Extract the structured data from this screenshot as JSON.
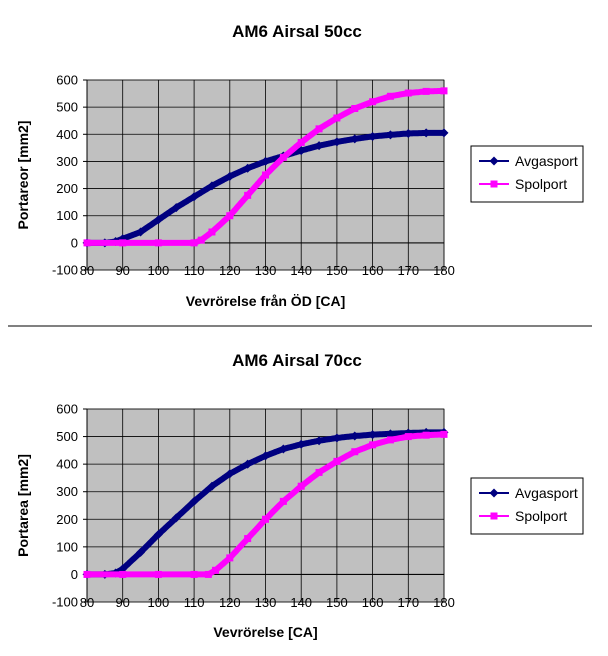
{
  "chart_data": [
    {
      "type": "line",
      "title": "AM6 Airsal 50cc",
      "xlabel": "Vevrörelse från ÖD [CA]",
      "ylabel": "Portareor [mm2]",
      "xlim": [
        80,
        180
      ],
      "ylim": [
        -100,
        600
      ],
      "xticks": [
        80,
        90,
        100,
        110,
        120,
        130,
        140,
        150,
        160,
        170,
        180
      ],
      "yticks": [
        -100,
        0,
        100,
        200,
        300,
        400,
        500,
        600
      ],
      "grid": true,
      "legend_position": "right",
      "plot_background": "#c0c0c0",
      "series": [
        {
          "name": "Avgasport",
          "color": "#000080",
          "marker": "diamond",
          "x": [
            80,
            85,
            88,
            90,
            95,
            100,
            105,
            110,
            115,
            120,
            125,
            130,
            135,
            140,
            145,
            150,
            155,
            160,
            165,
            170,
            175,
            180
          ],
          "y": [
            0,
            0,
            5,
            15,
            40,
            85,
            130,
            170,
            210,
            245,
            275,
            300,
            320,
            340,
            358,
            372,
            383,
            392,
            398,
            403,
            405,
            405
          ]
        },
        {
          "name": "Spolport",
          "color": "#ff00ff",
          "marker": "square",
          "x": [
            80,
            90,
            100,
            110,
            112,
            115,
            120,
            125,
            130,
            135,
            140,
            145,
            150,
            155,
            160,
            165,
            170,
            175,
            180
          ],
          "y": [
            0,
            0,
            0,
            0,
            10,
            40,
            100,
            175,
            250,
            315,
            370,
            420,
            460,
            495,
            520,
            540,
            552,
            558,
            560
          ]
        }
      ]
    },
    {
      "type": "line",
      "title": "AM6 Airsal 70cc",
      "xlabel": "Vevrörelse [CA]",
      "ylabel": "Portarea [mm2]",
      "xlim": [
        80,
        180
      ],
      "ylim": [
        -100,
        600
      ],
      "xticks": [
        80,
        90,
        100,
        110,
        120,
        130,
        140,
        150,
        160,
        170,
        180
      ],
      "yticks": [
        -100,
        0,
        100,
        200,
        300,
        400,
        500,
        600
      ],
      "grid": true,
      "legend_position": "right",
      "plot_background": "#c0c0c0",
      "series": [
        {
          "name": "Avgasport",
          "color": "#000080",
          "marker": "diamond",
          "x": [
            80,
            85,
            88,
            90,
            95,
            100,
            105,
            110,
            115,
            120,
            125,
            130,
            135,
            140,
            145,
            150,
            155,
            160,
            165,
            170,
            175,
            180
          ],
          "y": [
            0,
            0,
            5,
            20,
            80,
            145,
            205,
            265,
            320,
            365,
            400,
            430,
            455,
            472,
            485,
            495,
            502,
            507,
            510,
            513,
            515,
            515
          ]
        },
        {
          "name": "Spolport",
          "color": "#ff00ff",
          "marker": "square",
          "x": [
            80,
            90,
            100,
            110,
            114,
            116,
            120,
            125,
            130,
            135,
            140,
            145,
            150,
            155,
            160,
            165,
            170,
            175,
            180
          ],
          "y": [
            0,
            0,
            0,
            0,
            0,
            15,
            60,
            130,
            200,
            265,
            320,
            370,
            410,
            445,
            470,
            488,
            500,
            505,
            508
          ]
        }
      ]
    }
  ]
}
